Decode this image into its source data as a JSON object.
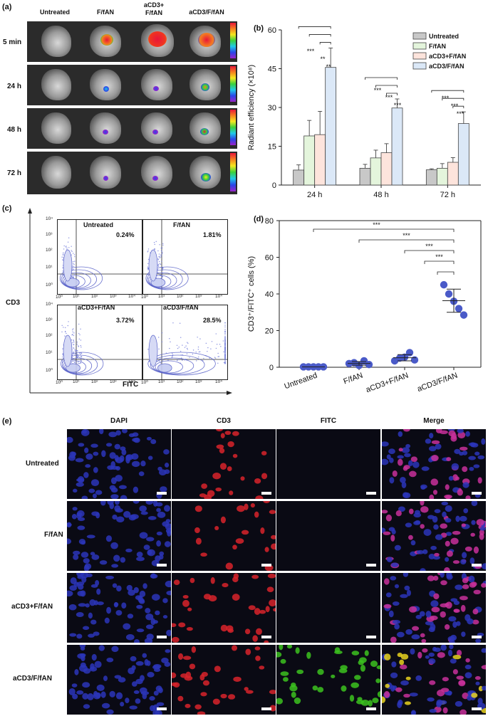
{
  "panel_a": {
    "label": "(a)",
    "columns": [
      "Untreated",
      "F/fAN",
      "aCD3+\nF/fAN",
      "aCD3/F/fAN"
    ],
    "rows": [
      "5 min",
      "24 h",
      "48 h",
      "72 h"
    ]
  },
  "panel_b": {
    "label": "(b)",
    "ylabel": "Radiant efficiency (×10⁸)",
    "significance": [
      "***",
      "**",
      "**",
      "***",
      "***",
      "***",
      "***",
      "***",
      "***"
    ]
  },
  "panel_c": {
    "label": "(c)",
    "ylabel": "CD3",
    "xlabel": "FITC",
    "panels": [
      {
        "name": "Untreated",
        "pct": "0.24%"
      },
      {
        "name": "F/fAN",
        "pct": "1.81%"
      },
      {
        "name": "aCD3+F/fAN",
        "pct": "3.72%"
      },
      {
        "name": "aCD3/F/fAN",
        "pct": "28.5%"
      }
    ],
    "ticks": [
      "10⁰",
      "10¹",
      "10²",
      "10³",
      "10⁴"
    ]
  },
  "panel_d": {
    "label": "(d)",
    "ylabel": "CD3⁺/FITC⁺ cells (%)",
    "significance": [
      "***",
      "***",
      "***",
      "***"
    ]
  },
  "panel_e": {
    "label": "(e)",
    "columns": [
      "DAPI",
      "CD3",
      "FITC",
      "Merge"
    ],
    "rows": [
      "Untreated",
      "F/fAN",
      "aCD3+F/fAN",
      "aCD3/F/fAN"
    ]
  },
  "colors": {
    "untreated": "#c8c8c8",
    "ffan": "#e4f5dc",
    "acd3_plus": "#fde4dc",
    "acd3_ffan": "#dbe8f7",
    "dot": "#4a5ac8",
    "dapi": "#2b35b8",
    "cd3": "#d8232a",
    "fitc": "#3cc21e"
  },
  "chart_data": [
    {
      "type": "bar",
      "title": "",
      "xlabel": "",
      "ylabel": "Radiant efficiency (×10⁸)",
      "categories": [
        "24 h",
        "48 h",
        "72 h"
      ],
      "ylim": [
        0,
        60
      ],
      "yticks": [
        0,
        15,
        30,
        45,
        60
      ],
      "legend_position": "top-right",
      "series": [
        {
          "name": "Untreated",
          "values": [
            5.8,
            6.5,
            5.9
          ],
          "errors": [
            2.0,
            1.5,
            0.4
          ]
        },
        {
          "name": "F/fAN",
          "values": [
            19.0,
            10.5,
            6.5
          ],
          "errors": [
            6.0,
            3.0,
            1.8
          ]
        },
        {
          "name": "aCD3+F/fAN",
          "values": [
            19.5,
            12.5,
            8.8
          ],
          "errors": [
            9.0,
            3.5,
            1.8
          ]
        },
        {
          "name": "aCD3/F/fAN",
          "values": [
            45.5,
            29.8,
            23.8
          ],
          "errors": [
            7.5,
            3.5,
            4.5
          ]
        }
      ]
    },
    {
      "type": "scatter",
      "title": "",
      "xlabel": "",
      "ylabel": "CD3⁺/FITC⁺ cells (%)",
      "categories": [
        "Untreated",
        "F/fAN",
        "aCD3+F/fAN",
        "aCD3/F/fAN"
      ],
      "ylim": [
        0,
        80
      ],
      "yticks": [
        0,
        20,
        40,
        60,
        80
      ],
      "points": [
        [
          0.2,
          0.2,
          0.2,
          0.2,
          0.2
        ],
        [
          2.0,
          2.5,
          1.0,
          3.5,
          1.5
        ],
        [
          3.5,
          5.0,
          5.5,
          8.0,
          4.0
        ],
        [
          45.0,
          40.0,
          36.0,
          32.0,
          28.5
        ]
      ],
      "means": [
        0.2,
        2.1,
        5.2,
        36.3
      ],
      "sd": [
        0.0,
        1.0,
        1.7,
        6.3
      ]
    }
  ]
}
